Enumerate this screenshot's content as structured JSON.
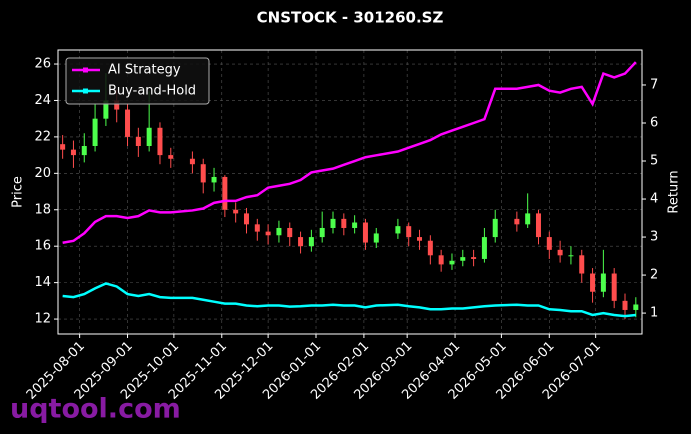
{
  "chart_data": {
    "type": "candlestick",
    "title": "CNSTOCK - 301260.SZ",
    "ylabel": "Price",
    "y2label": "Return",
    "watermark": "uqtool.com",
    "x": [
      "2025-07-21",
      "2025-07-28",
      "2025-08-04",
      "2025-08-11",
      "2025-08-18",
      "2025-08-25",
      "2025-09-01",
      "2025-09-08",
      "2025-09-15",
      "2025-09-22",
      "2025-09-29",
      "2025-10-13",
      "2025-10-20",
      "2025-10-27",
      "2025-11-03",
      "2025-11-10",
      "2025-11-17",
      "2025-11-24",
      "2025-12-01",
      "2025-12-08",
      "2025-12-15",
      "2025-12-22",
      "2025-12-29",
      "2026-01-05",
      "2026-01-12",
      "2026-01-19",
      "2026-01-26",
      "2026-02-02",
      "2026-02-09",
      "2026-02-23",
      "2026-03-02",
      "2026-03-09",
      "2026-03-16",
      "2026-03-23",
      "2026-03-30",
      "2026-04-06",
      "2026-04-13",
      "2026-04-20",
      "2026-04-27",
      "2026-05-11",
      "2026-05-18",
      "2026-05-25",
      "2026-06-01",
      "2026-06-08",
      "2026-06-15",
      "2026-06-22",
      "2026-06-29",
      "2026-07-06",
      "2026-07-13",
      "2026-07-20",
      "2026-07-27"
    ],
    "open": [
      21.6,
      21.3,
      21.0,
      21.5,
      23.0,
      24.0,
      23.5,
      22.0,
      21.5,
      22.5,
      21.0,
      20.8,
      20.5,
      19.5,
      19.8,
      18.0,
      17.8,
      17.2,
      16.8,
      16.6,
      17.0,
      16.5,
      16.0,
      16.5,
      17.0,
      17.5,
      17.0,
      17.3,
      16.2,
      16.7,
      17.1,
      16.5,
      16.3,
      15.5,
      15.0,
      15.2,
      15.4,
      15.3,
      16.5,
      17.5,
      17.2,
      17.8,
      16.5,
      15.8,
      15.5,
      15.5,
      14.5,
      13.5,
      14.5,
      13.0,
      12.5
    ],
    "high": [
      22.1,
      21.8,
      22.2,
      23.8,
      25.5,
      24.6,
      23.8,
      22.5,
      24.5,
      22.8,
      21.4,
      21.2,
      20.8,
      20.3,
      19.9,
      18.4,
      18.1,
      17.5,
      17.2,
      17.4,
      17.3,
      16.8,
      16.9,
      17.9,
      17.9,
      17.8,
      17.7,
      17.5,
      17.0,
      17.5,
      17.3,
      16.9,
      16.6,
      15.8,
      15.6,
      15.8,
      15.8,
      17.0,
      18.0,
      17.9,
      18.9,
      18.0,
      16.8,
      16.3,
      16.0,
      15.8,
      14.8,
      15.8,
      14.8,
      13.4,
      13.2
    ],
    "low": [
      20.8,
      20.3,
      20.6,
      21.2,
      22.6,
      22.8,
      21.5,
      20.9,
      21.2,
      20.5,
      20.3,
      20.0,
      18.9,
      19.0,
      17.6,
      17.3,
      16.7,
      16.3,
      16.1,
      16.2,
      16.0,
      15.6,
      15.7,
      16.2,
      16.7,
      16.6,
      16.7,
      15.8,
      15.9,
      16.4,
      16.0,
      15.8,
      15.0,
      14.6,
      14.7,
      14.9,
      14.9,
      15.1,
      16.2,
      16.8,
      17.0,
      16.1,
      15.3,
      15.1,
      15.0,
      14.0,
      12.9,
      13.2,
      12.6,
      12.0,
      12.1
    ],
    "close": [
      21.3,
      21.0,
      21.5,
      23.0,
      24.0,
      23.5,
      22.0,
      21.5,
      22.5,
      21.0,
      20.8,
      20.5,
      19.5,
      19.8,
      18.0,
      17.8,
      17.2,
      16.8,
      16.6,
      17.0,
      16.5,
      16.0,
      16.5,
      17.0,
      17.5,
      17.0,
      17.3,
      16.2,
      16.7,
      17.1,
      16.5,
      16.3,
      15.5,
      15.0,
      15.2,
      15.4,
      15.3,
      16.5,
      17.5,
      17.2,
      17.8,
      16.5,
      15.8,
      15.5,
      15.5,
      14.5,
      13.5,
      14.5,
      13.0,
      12.5,
      12.8
    ],
    "up_color": "#4dff4d",
    "down_color": "#ff4d4d",
    "series": [
      {
        "name": "AI Strategy",
        "color": "#ff00ff",
        "axis": "y2",
        "values": [
          2.85,
          2.9,
          3.1,
          3.4,
          3.55,
          3.55,
          3.5,
          3.55,
          3.7,
          3.65,
          3.65,
          3.7,
          3.75,
          3.9,
          3.95,
          3.95,
          4.05,
          4.1,
          4.3,
          4.35,
          4.4,
          4.5,
          4.7,
          4.75,
          4.8,
          4.9,
          5.0,
          5.1,
          5.15,
          5.25,
          5.35,
          5.45,
          5.55,
          5.7,
          5.8,
          5.9,
          6.0,
          6.1,
          6.9,
          6.9,
          6.95,
          7.0,
          6.85,
          6.8,
          6.9,
          6.95,
          6.5,
          7.3,
          7.2,
          7.3,
          7.6
        ]
      },
      {
        "name": "Buy-and-Hold",
        "color": "#00ffff",
        "axis": "y2",
        "values": [
          1.45,
          1.42,
          1.5,
          1.65,
          1.78,
          1.7,
          1.5,
          1.45,
          1.5,
          1.42,
          1.4,
          1.4,
          1.35,
          1.3,
          1.25,
          1.25,
          1.2,
          1.18,
          1.2,
          1.2,
          1.17,
          1.18,
          1.2,
          1.2,
          1.22,
          1.2,
          1.2,
          1.15,
          1.2,
          1.22,
          1.18,
          1.15,
          1.1,
          1.1,
          1.12,
          1.12,
          1.15,
          1.18,
          1.2,
          1.22,
          1.2,
          1.2,
          1.1,
          1.08,
          1.05,
          1.05,
          0.95,
          1.0,
          0.95,
          0.92,
          0.95
        ]
      }
    ],
    "xlim": [
      "2025-07-18",
      "2026-07-31"
    ],
    "xticks": [
      "2025-08-01",
      "2025-09-01",
      "2025-10-01",
      "2025-11-01",
      "2025-12-01",
      "2026-01-01",
      "2026-02-01",
      "2026-03-01",
      "2026-04-01",
      "2026-05-01",
      "2026-06-01",
      "2026-07-01"
    ],
    "ylim": [
      11.18,
      26.77
    ],
    "yticks": [
      12,
      14,
      16,
      18,
      20,
      22,
      24,
      26
    ],
    "y2lim": [
      0.45,
      7.92
    ],
    "y2ticks": [
      1,
      2,
      3,
      4,
      5,
      6,
      7
    ],
    "grid": true,
    "legend": "upper left"
  }
}
